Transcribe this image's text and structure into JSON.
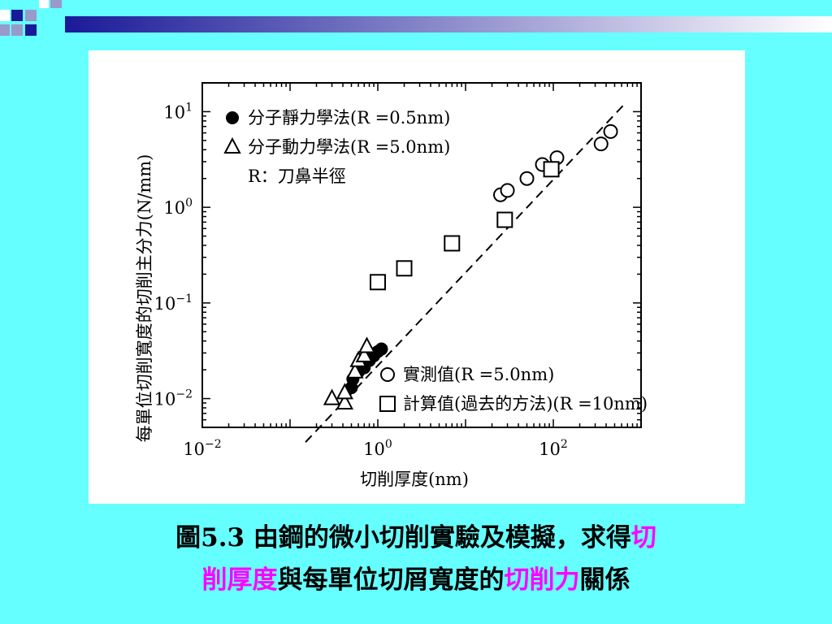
{
  "decor": {
    "square_colors": [
      "#1a1a99",
      "#9999cc",
      "#ffffff"
    ],
    "bar_gradient": [
      "#1a1a99",
      "#ffffff"
    ]
  },
  "caption": {
    "line1_prefix": "圖5.3  由鋼的微小切削實驗及模擬，求得",
    "line1_highlight": "切",
    "line2_highlight_start": "削厚度",
    "line2_middle": "與每單位切屑寬度的",
    "line2_highlight_end": "切削力",
    "line2_suffix": "關係",
    "highlight_color": "#ff00ff"
  },
  "chart_data": {
    "type": "scatter",
    "xlabel": "切削厚度(nm)",
    "ylabel": "每單位切削寬度的切削主分力(N/mm)",
    "x_scale": "log",
    "y_scale": "log",
    "xlim": [
      0.01,
      1000
    ],
    "ylim": [
      0.005,
      20
    ],
    "x_ticks": [
      {
        "value": 0.01,
        "base": "10",
        "exp": "−2"
      },
      {
        "value": 1,
        "base": "10",
        "exp": "0"
      },
      {
        "value": 100,
        "base": "10",
        "exp": "2"
      }
    ],
    "y_ticks": [
      {
        "value": 0.01,
        "base": "10",
        "exp": "−2"
      },
      {
        "value": 0.1,
        "base": "10",
        "exp": "−1"
      },
      {
        "value": 1,
        "base": "10",
        "exp": "0"
      },
      {
        "value": 10,
        "base": "10",
        "exp": "1"
      }
    ],
    "grid": false,
    "legend_top": [
      {
        "marker": "filled-circle",
        "text": "分子靜力學法(R =0.5nm)"
      },
      {
        "marker": "open-triangle",
        "text": "分子動力學法(R =5.0nm)"
      },
      {
        "marker": "none",
        "text": "R：刀鼻半徑"
      }
    ],
    "legend_bottom": [
      {
        "marker": "open-circle",
        "text": "實測值(R =5.0nm)"
      },
      {
        "marker": "open-square",
        "text": "計算值(過去的方法)(R =10nm)"
      }
    ],
    "series": [
      {
        "name": "分子靜力學法(R =0.5nm)",
        "marker": "filled-circle",
        "points": [
          [
            0.5,
            0.013
          ],
          [
            0.52,
            0.016
          ],
          [
            0.6,
            0.019
          ],
          [
            0.7,
            0.021
          ],
          [
            0.8,
            0.025
          ],
          [
            0.9,
            0.028
          ],
          [
            1.0,
            0.031
          ],
          [
            1.1,
            0.033
          ],
          [
            0.72,
            0.024
          ]
        ]
      },
      {
        "name": "分子動力學法(R =5.0nm)",
        "marker": "open-triangle",
        "points": [
          [
            0.3,
            0.01
          ],
          [
            0.42,
            0.009
          ],
          [
            0.42,
            0.0115
          ],
          [
            0.55,
            0.019
          ],
          [
            0.6,
            0.025
          ],
          [
            0.7,
            0.028
          ],
          [
            0.75,
            0.035
          ]
        ]
      },
      {
        "name": "實測值(R =5.0nm)",
        "marker": "open-circle",
        "points": [
          [
            25,
            1.35
          ],
          [
            30,
            1.5
          ],
          [
            50,
            2.0
          ],
          [
            75,
            2.8
          ],
          [
            110,
            3.3
          ],
          [
            350,
            4.6
          ],
          [
            450,
            6.2
          ]
        ]
      },
      {
        "name": "計算值(過去的方法)(R =10nm)",
        "marker": "open-square",
        "points": [
          [
            1.0,
            0.165
          ],
          [
            2.0,
            0.23
          ],
          [
            7.0,
            0.42
          ],
          [
            28,
            0.74
          ],
          [
            95,
            2.5
          ]
        ]
      }
    ],
    "trendline": {
      "style": "dashed",
      "points": [
        [
          0.15,
          0.0035
        ],
        [
          620,
          11.5
        ]
      ]
    }
  }
}
